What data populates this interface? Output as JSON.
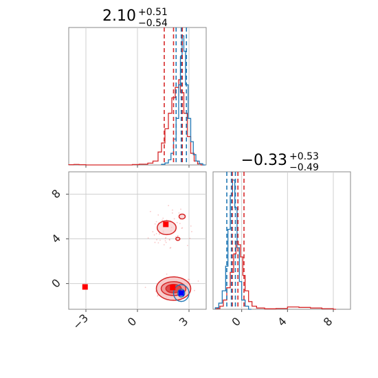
{
  "chart_data": [
    {
      "type": "histogram",
      "panel": "param1-marginal",
      "title": {
        "value": "2.10",
        "upper": "+0.51",
        "lower": "−0.54"
      },
      "xlim": [
        -4,
        4
      ],
      "grid": true,
      "series": [
        {
          "color": "#d62728",
          "bins": [
            [
              -4,
              0.2
            ],
            [
              -3.7,
              0.4
            ],
            [
              -3.4,
              0.2
            ],
            [
              -3,
              0
            ],
            [
              -1.5,
              0
            ],
            [
              -0.3,
              0.3
            ],
            [
              0.1,
              0.6
            ],
            [
              0.6,
              1.4
            ],
            [
              0.9,
              3
            ],
            [
              1.2,
              10
            ],
            [
              1.4,
              17
            ],
            [
              1.6,
              28
            ],
            [
              1.8,
              40
            ],
            [
              2,
              52
            ],
            [
              2.2,
              60
            ],
            [
              2.4,
              66
            ],
            [
              2.5,
              56
            ],
            [
              2.7,
              40
            ],
            [
              2.9,
              22
            ],
            [
              3.1,
              9
            ],
            [
              3.3,
              3
            ],
            [
              3.5,
              0.8
            ],
            [
              3.7,
              0
            ]
          ],
          "quantiles": [
            1.56,
            2.1,
            2.61
          ]
        },
        {
          "color": "#1f77b4",
          "bins": [
            [
              1.4,
              0.5
            ],
            [
              1.6,
              1.5
            ],
            [
              1.8,
              4
            ],
            [
              1.95,
              9
            ],
            [
              2.1,
              20
            ],
            [
              2.25,
              36
            ],
            [
              2.4,
              62
            ],
            [
              2.5,
              84
            ],
            [
              2.6,
              100
            ],
            [
              2.7,
              88
            ],
            [
              2.8,
              62
            ],
            [
              2.95,
              36
            ],
            [
              3.1,
              18
            ],
            [
              3.25,
              8
            ],
            [
              3.4,
              3
            ],
            [
              3.6,
              1
            ],
            [
              3.8,
              0
            ]
          ],
          "quantiles": [
            2.25,
            2.55,
            2.85
          ]
        }
      ]
    },
    {
      "type": "histogram",
      "panel": "param2-marginal",
      "title": {
        "value": "−0.33",
        "upper": "+0.53",
        "lower": "−0.49"
      },
      "xlim": [
        -2.5,
        9.5
      ],
      "xticks": [
        0,
        4,
        8
      ],
      "xtick_labels": [
        "0",
        "4",
        "8"
      ],
      "grid": true,
      "series": [
        {
          "color": "#d62728",
          "bins": [
            [
              -2.2,
              0.5
            ],
            [
              -1.9,
              2
            ],
            [
              -1.6,
              6
            ],
            [
              -1.3,
              14
            ],
            [
              -1,
              24
            ],
            [
              -0.7,
              36
            ],
            [
              -0.5,
              44
            ],
            [
              -0.3,
              42
            ],
            [
              -0.1,
              34
            ],
            [
              0.1,
              22
            ],
            [
              0.3,
              12
            ],
            [
              0.6,
              5
            ],
            [
              0.9,
              2
            ],
            [
              1.3,
              0.8
            ],
            [
              2,
              0.3
            ],
            [
              3,
              0.5
            ],
            [
              4,
              1.5
            ],
            [
              5,
              1.2
            ],
            [
              6,
              0.8
            ],
            [
              7,
              0.4
            ],
            [
              8,
              0
            ]
          ],
          "quantiles": [
            -0.82,
            -0.33,
            0.2
          ]
        },
        {
          "color": "#1f77b4",
          "bins": [
            [
              -2.3,
              1
            ],
            [
              -2,
              4
            ],
            [
              -1.7,
              12
            ],
            [
              -1.4,
              28
            ],
            [
              -1.2,
              52
            ],
            [
              -1,
              74
            ],
            [
              -0.8,
              84
            ],
            [
              -0.6,
              66
            ],
            [
              -0.4,
              40
            ],
            [
              -0.2,
              18
            ],
            [
              0,
              6
            ],
            [
              0.3,
              2
            ],
            [
              0.6,
              0
            ]
          ],
          "quantiles": [
            -1.3,
            -0.9,
            -0.55
          ]
        }
      ]
    },
    {
      "type": "contour",
      "panel": "joint",
      "xlim": [
        -4,
        4
      ],
      "ylim": [
        -2.3,
        10
      ],
      "xticks": [
        -3,
        0,
        3
      ],
      "xtick_labels": [
        "−3",
        "0",
        "3"
      ],
      "yticks": [
        0,
        4,
        8
      ],
      "ytick_labels": [
        "0",
        "4",
        "8"
      ],
      "grid": true,
      "red_modes": [
        {
          "cx": 2.1,
          "cy": -0.45,
          "levels": [
            [
              1.0,
              1.05
            ],
            [
              0.72,
              0.62
            ],
            [
              0.45,
              0.38
            ]
          ]
        },
        {
          "cx": 1.7,
          "cy": 5.0,
          "levels": [
            [
              0.55,
              0.62
            ]
          ]
        }
      ],
      "red_small_contours": [
        {
          "cx": 2.6,
          "cy": 6.0,
          "rx": 0.18,
          "ry": 0.22
        },
        {
          "cx": 2.35,
          "cy": 4.0,
          "rx": 0.12,
          "ry": 0.14
        }
      ],
      "blue_mode": {
        "cx": 2.55,
        "cy": -0.85,
        "levels": [
          [
            0.45,
            0.75
          ],
          [
            0.2,
            0.35
          ]
        ]
      },
      "markers": [
        {
          "x": 1.65,
          "y": 5.3,
          "color": "#ff0000"
        },
        {
          "x": -3.05,
          "y": -0.3,
          "color": "#ff0000"
        },
        {
          "x": 2.05,
          "y": -0.35,
          "color": "#ff0000"
        },
        {
          "x": 2.55,
          "y": -0.85,
          "color": "#0000ff"
        }
      ]
    }
  ]
}
